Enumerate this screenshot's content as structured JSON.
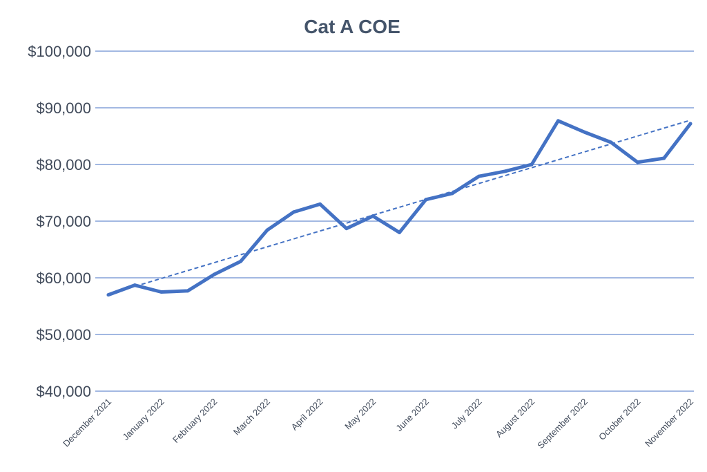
{
  "chart_data": {
    "type": "line",
    "title": "Cat A COE",
    "xlabel": "",
    "ylabel": "",
    "ylim": [
      40000,
      100000
    ],
    "yticks": [
      40000,
      50000,
      60000,
      70000,
      80000,
      90000,
      100000
    ],
    "ytick_labels": [
      "$40,000",
      "$50,000",
      "$60,000",
      "$70,000",
      "$80,000",
      "$90,000",
      "$100,000"
    ],
    "x_tick_labels": [
      "December 2021",
      "January 2022",
      "February 2022",
      "March 2022",
      "April 2022",
      "May 2022",
      "June 2022",
      "July 2022",
      "August 2022",
      "September 2022",
      "October 2022",
      "November 2022"
    ],
    "grid": "horizontal",
    "trendline": "linear (dashed)",
    "series": [
      {
        "color": "#4472c4",
        "values": [
          57000,
          58700,
          57500,
          57700,
          60600,
          62900,
          68400,
          71600,
          73000,
          68700,
          70900,
          68000,
          73800,
          74900,
          77900,
          78800,
          80000,
          87700,
          85700,
          83900,
          80400,
          81100,
          87200
        ]
      }
    ],
    "gridline_color": "#4472c4"
  }
}
